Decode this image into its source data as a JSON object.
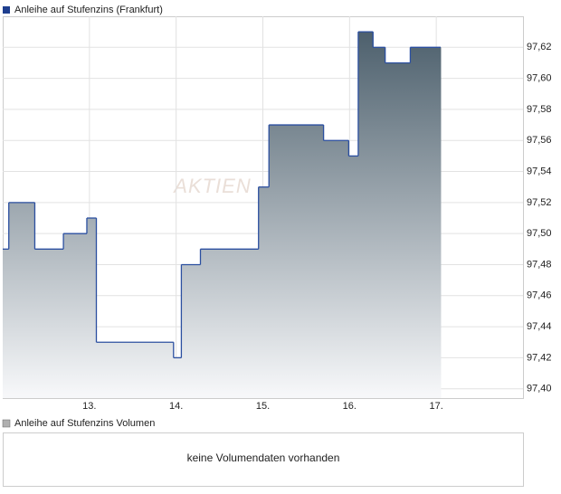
{
  "chart_data": {
    "type": "step-area",
    "legend": "Anleihe auf Stufenzins (Frankfurt)",
    "legend_color": "#1f3f8f",
    "watermark": "AKTIEN",
    "line_color": "#2b4fa0",
    "fill_top": "#4c5f6c",
    "fill_bottom": "#f6f7f9",
    "x": [
      12.0,
      12.07,
      12.37,
      12.7,
      12.97,
      13.08,
      13.97,
      14.06,
      14.28,
      14.95,
      15.07,
      15.7,
      15.99,
      16.1,
      16.27,
      16.41,
      16.7,
      17.05
    ],
    "values": [
      97.49,
      97.52,
      97.49,
      97.5,
      97.51,
      97.43,
      97.42,
      97.48,
      97.49,
      97.53,
      97.57,
      97.56,
      97.55,
      97.63,
      97.62,
      97.61,
      97.62,
      97.62
    ],
    "xlim": [
      12,
      18
    ],
    "xticks": [
      {
        "value": 13,
        "label": "13."
      },
      {
        "value": 14,
        "label": "14."
      },
      {
        "value": 15,
        "label": "15."
      },
      {
        "value": 16,
        "label": "16."
      },
      {
        "value": 17,
        "label": "17."
      }
    ],
    "ylim": [
      97.394,
      97.64
    ],
    "yticks": [
      {
        "value": 97.4,
        "label": "97,40"
      },
      {
        "value": 97.42,
        "label": "97,42"
      },
      {
        "value": 97.44,
        "label": "97,44"
      },
      {
        "value": 97.46,
        "label": "97,46"
      },
      {
        "value": 97.48,
        "label": "97,48"
      },
      {
        "value": 97.5,
        "label": "97,50"
      },
      {
        "value": 97.52,
        "label": "97,52"
      },
      {
        "value": 97.54,
        "label": "97,54"
      },
      {
        "value": 97.56,
        "label": "97,56"
      },
      {
        "value": 97.58,
        "label": "97,58"
      },
      {
        "value": 97.6,
        "label": "97,60"
      },
      {
        "value": 97.62,
        "label": "97,62"
      }
    ],
    "grid": true
  },
  "volume": {
    "legend": "Anleihe auf Stufenzins Volumen",
    "legend_color": "#b0b0b0",
    "message": "keine Volumendaten vorhanden"
  }
}
